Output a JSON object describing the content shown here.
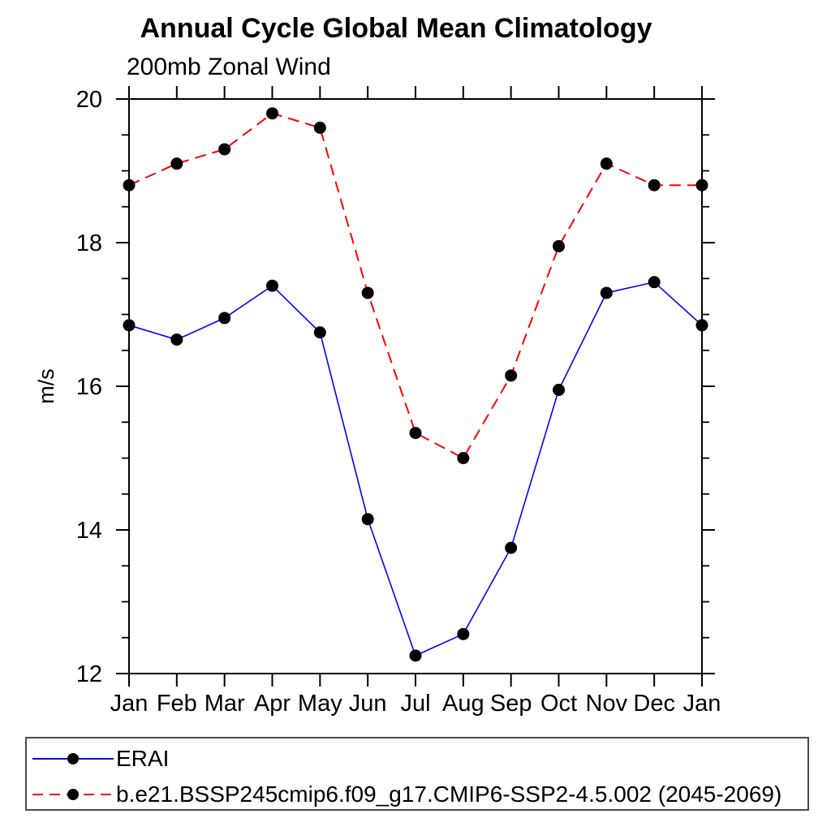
{
  "chart_data": {
    "type": "line",
    "title": "Annual Cycle Global Mean Climatology",
    "subtitle": "200mb Zonal Wind",
    "ylabel": "m/s",
    "categories": [
      "Jan",
      "Feb",
      "Mar",
      "Apr",
      "May",
      "Jun",
      "Jul",
      "Aug",
      "Sep",
      "Oct",
      "Nov",
      "Dec",
      "Jan"
    ],
    "ylim": [
      12,
      20
    ],
    "yticks_major": [
      12,
      14,
      16,
      18,
      20
    ],
    "ytick_minor_interval": 0.5,
    "grid": false,
    "legend_position": "bottom-left-box",
    "frame": "full-box-outward-ticks",
    "series": [
      {
        "name": "ERAI",
        "color": "#0000ff",
        "line_style": "solid",
        "marker": "filled-circle",
        "marker_color": "#000000",
        "values": [
          16.85,
          16.65,
          16.95,
          17.4,
          16.75,
          14.15,
          12.25,
          12.55,
          13.75,
          15.95,
          17.3,
          17.45,
          16.85
        ]
      },
      {
        "name": "b.e21.BSSP245cmip6.f09_g17.CMIP6-SSP2-4.5.002 (2045-2069)",
        "color": "#ff0000",
        "line_style": "dashed",
        "marker": "filled-circle",
        "marker_color": "#000000",
        "values": [
          18.8,
          19.1,
          19.3,
          19.8,
          19.6,
          17.3,
          15.35,
          15.0,
          16.15,
          17.95,
          19.1,
          18.8,
          18.8
        ]
      }
    ],
    "colors": {
      "axis": "#000000",
      "text": "#000000",
      "background": "#ffffff",
      "erai_line": "#0000ff",
      "model_line": "#ff0000",
      "marker": "#000000"
    }
  }
}
